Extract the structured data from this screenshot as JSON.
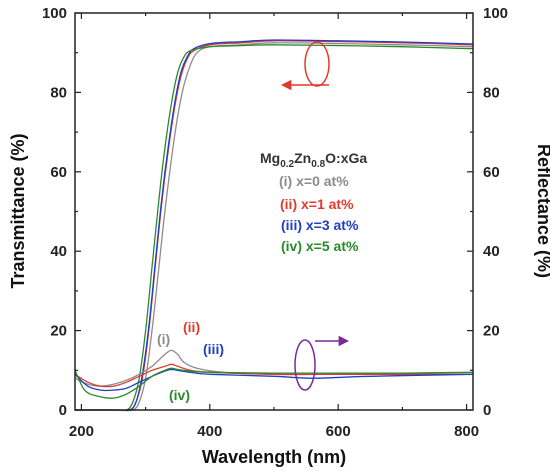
{
  "chart_data": {
    "type": "line",
    "xlabel": "Wavelength (nm)",
    "ylabel_left": "Transmittance (%)",
    "ylabel_right": "Reflectance (%)",
    "xlim": [
      190,
      810
    ],
    "ylim_left": [
      0,
      100
    ],
    "ylim_right": [
      0,
      100
    ],
    "xticks": [
      "200",
      "400",
      "600",
      "800"
    ],
    "xtick_values": [
      200,
      400,
      600,
      800
    ],
    "yticks_left": [
      "0",
      "20",
      "40",
      "60",
      "80",
      "100"
    ],
    "yticks_right": [
      "0",
      "20",
      "40",
      "60",
      "80",
      "100"
    ],
    "ytick_values": [
      0,
      20,
      40,
      60,
      80,
      100
    ],
    "legend": {
      "title_main": "Mg",
      "title_sub1": "0.2",
      "title_mid": "Zn",
      "title_sub2": "0.8",
      "title_end": "O:xGa",
      "placement": "center-right",
      "entries": [
        "(i) x=0 at%",
        "(ii) x=1 at%",
        "(iii) x=3 at%",
        "(iv) x=5 at%"
      ]
    },
    "annotations": [
      "(i)",
      "(ii)",
      "(iii)",
      "(iv)"
    ],
    "grid": false,
    "series": [
      {
        "name": "(i) x=0 at%",
        "group": "transmittance",
        "axis": "left",
        "color": "#8c8c8c",
        "x": [
          190,
          260,
          280,
          290,
          300,
          310,
          320,
          330,
          340,
          350,
          360,
          370,
          380,
          400,
          450,
          500,
          600,
          700,
          810
        ],
        "y": [
          0,
          0,
          0,
          2,
          8,
          20,
          35,
          50,
          63,
          74,
          82,
          87,
          90,
          91.5,
          92,
          92.5,
          92.3,
          92,
          91.5
        ]
      },
      {
        "name": "(ii) x=1 at%",
        "group": "transmittance",
        "axis": "left",
        "color": "#e03a2f",
        "x": [
          190,
          255,
          275,
          285,
          295,
          305,
          315,
          325,
          335,
          345,
          355,
          365,
          375,
          400,
          450,
          500,
          600,
          700,
          810
        ],
        "y": [
          0,
          0,
          0,
          2,
          8,
          20,
          36,
          52,
          65,
          76,
          84,
          88.5,
          90.5,
          92,
          92.5,
          93,
          92.8,
          92.5,
          92
        ]
      },
      {
        "name": "(iii) x=3 at%",
        "group": "transmittance",
        "axis": "left",
        "color": "#1f3fc4",
        "x": [
          190,
          255,
          275,
          285,
          295,
          305,
          315,
          325,
          335,
          345,
          355,
          365,
          375,
          400,
          450,
          500,
          600,
          700,
          810
        ],
        "y": [
          0,
          0,
          0,
          2,
          9,
          21,
          37,
          53,
          66,
          77,
          85,
          89,
          91,
          92.3,
          92.8,
          93.2,
          93,
          92.7,
          92.2
        ]
      },
      {
        "name": "(iv) x=5 at%",
        "group": "transmittance",
        "axis": "left",
        "color": "#2a8a2a",
        "x": [
          190,
          250,
          270,
          280,
          290,
          300,
          310,
          320,
          330,
          340,
          350,
          360,
          370,
          400,
          450,
          500,
          600,
          700,
          810
        ],
        "y": [
          0,
          0,
          0,
          2,
          8,
          20,
          36,
          52,
          66,
          77,
          85,
          89,
          90.5,
          91.5,
          91.8,
          92,
          91.8,
          91.5,
          91
        ]
      },
      {
        "name": "(i) x=0 at%",
        "group": "reflectance",
        "axis": "right",
        "color": "#8c8c8c",
        "x": [
          190,
          210,
          230,
          250,
          270,
          290,
          310,
          320,
          330,
          340,
          350,
          360,
          380,
          420,
          500,
          600,
          700,
          810
        ],
        "y": [
          8,
          6.5,
          6,
          6.5,
          7.5,
          9,
          11,
          12.5,
          14,
          15,
          14,
          12,
          10.5,
          9.5,
          9,
          9,
          9,
          9
        ]
      },
      {
        "name": "(ii) x=1 at%",
        "group": "reflectance",
        "axis": "right",
        "color": "#e03a2f",
        "x": [
          190,
          210,
          230,
          250,
          270,
          290,
          310,
          330,
          340,
          350,
          370,
          400,
          500,
          600,
          700,
          810
        ],
        "y": [
          9,
          7,
          6,
          6,
          7,
          8.5,
          10,
          11,
          11.5,
          11,
          10,
          9.5,
          9,
          9,
          9,
          9
        ]
      },
      {
        "name": "(iii) x=3 at%",
        "group": "reflectance",
        "axis": "right",
        "color": "#1f3fc4",
        "x": [
          190,
          210,
          230,
          250,
          270,
          290,
          310,
          330,
          340,
          350,
          370,
          400,
          500,
          560,
          650,
          810
        ],
        "y": [
          9,
          6,
          5,
          5,
          5.5,
          7,
          8.5,
          9.8,
          10.2,
          10,
          9.5,
          9,
          8.5,
          8,
          8.5,
          9
        ]
      },
      {
        "name": "(iv) x=5 at%",
        "group": "reflectance",
        "axis": "right",
        "color": "#2a8a2a",
        "x": [
          190,
          205,
          225,
          250,
          270,
          290,
          310,
          330,
          340,
          350,
          370,
          400,
          500,
          600,
          700,
          810
        ],
        "y": [
          10,
          5,
          3.5,
          3,
          4,
          6,
          8.5,
          10,
          10.5,
          10.2,
          9.8,
          9.5,
          9.3,
          9.3,
          9.3,
          9.5
        ]
      }
    ]
  }
}
